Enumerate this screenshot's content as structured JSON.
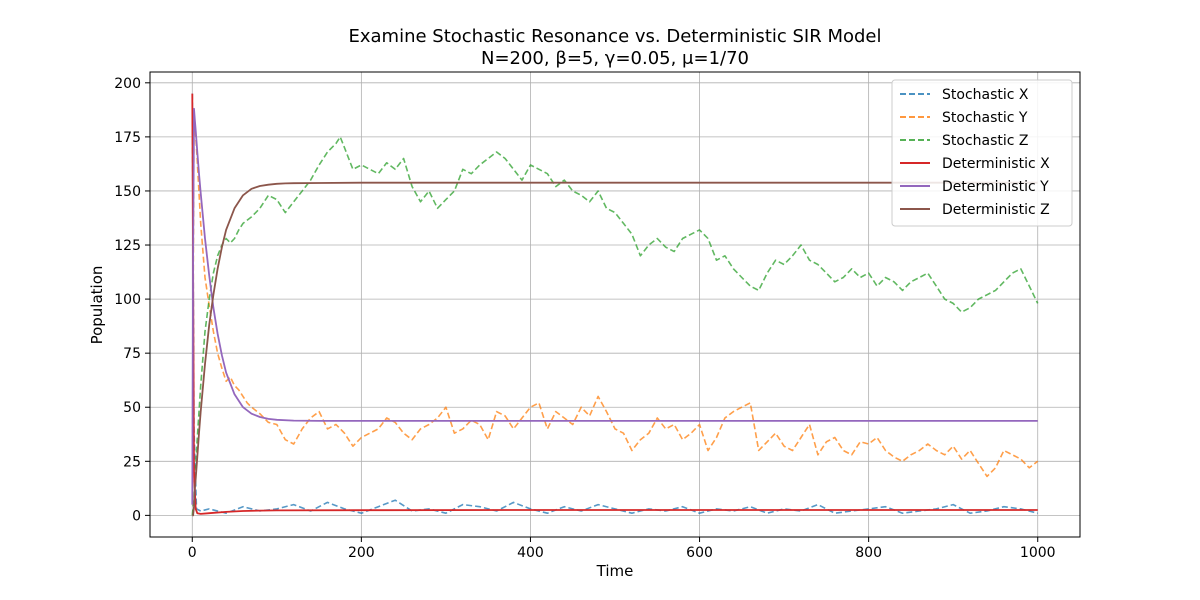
{
  "chart_data": {
    "type": "line",
    "title": "Examine Stochastic Resonance vs. Deterministic SIR Model",
    "subtitle": "N=200, β=5, γ=0.05, μ=1/70",
    "xlabel": "Time",
    "ylabel": "Population",
    "xlim": [
      -50,
      1050
    ],
    "ylim": [
      -10,
      205
    ],
    "xticks": [
      0,
      200,
      400,
      600,
      800,
      1000
    ],
    "yticks": [
      0,
      25,
      50,
      75,
      100,
      125,
      150,
      175,
      200
    ],
    "grid": true,
    "legend_position": "top-right",
    "series": [
      {
        "name": "Stochastic X",
        "color": "#1f77b4",
        "style": "dashed",
        "x": [
          0,
          2,
          5,
          10,
          20,
          40,
          60,
          80,
          100,
          120,
          140,
          160,
          180,
          200,
          220,
          240,
          260,
          280,
          300,
          320,
          340,
          360,
          380,
          400,
          420,
          440,
          460,
          480,
          500,
          520,
          540,
          560,
          580,
          600,
          620,
          640,
          660,
          680,
          700,
          720,
          740,
          760,
          780,
          800,
          820,
          840,
          860,
          880,
          900,
          920,
          940,
          960,
          980,
          1000
        ],
        "y": [
          195,
          40,
          3,
          2,
          3,
          1,
          4,
          2,
          3,
          5,
          2,
          6,
          3,
          1,
          4,
          7,
          2,
          3,
          1,
          5,
          4,
          2,
          6,
          3,
          1,
          4,
          2,
          5,
          3,
          1,
          3,
          2,
          4,
          1,
          3,
          2,
          4,
          1,
          3,
          2,
          5,
          1,
          2,
          3,
          4,
          1,
          2,
          3,
          5,
          1,
          2,
          4,
          3,
          1
        ]
      },
      {
        "name": "Stochastic Y",
        "color": "#ff7f0e",
        "style": "dashed",
        "x": [
          0,
          2,
          5,
          10,
          15,
          20,
          25,
          30,
          35,
          40,
          45,
          50,
          55,
          60,
          65,
          70,
          80,
          90,
          100,
          110,
          120,
          130,
          140,
          150,
          160,
          170,
          180,
          190,
          200,
          210,
          220,
          230,
          240,
          250,
          260,
          270,
          280,
          290,
          300,
          310,
          320,
          330,
          340,
          350,
          360,
          370,
          380,
          390,
          400,
          410,
          420,
          430,
          440,
          450,
          460,
          470,
          480,
          490,
          500,
          510,
          520,
          530,
          540,
          550,
          560,
          570,
          580,
          590,
          600,
          610,
          620,
          630,
          640,
          650,
          660,
          670,
          680,
          690,
          700,
          710,
          720,
          730,
          740,
          750,
          760,
          770,
          780,
          790,
          800,
          810,
          820,
          830,
          840,
          850,
          860,
          870,
          880,
          890,
          900,
          910,
          920,
          930,
          940,
          950,
          960,
          970,
          980,
          990,
          1000
        ],
        "y": [
          5,
          185,
          170,
          135,
          110,
          97,
          85,
          75,
          68,
          62,
          64,
          60,
          58,
          55,
          52,
          50,
          47,
          43,
          42,
          35,
          33,
          40,
          45,
          48,
          40,
          42,
          38,
          32,
          36,
          38,
          40,
          45,
          43,
          38,
          35,
          40,
          42,
          45,
          50,
          38,
          40,
          44,
          42,
          35,
          48,
          46,
          40,
          45,
          50,
          52,
          40,
          48,
          45,
          42,
          50,
          46,
          55,
          48,
          40,
          38,
          30,
          35,
          38,
          45,
          40,
          42,
          35,
          38,
          42,
          30,
          36,
          45,
          48,
          50,
          52,
          30,
          34,
          38,
          32,
          30,
          36,
          42,
          28,
          34,
          36,
          30,
          28,
          34,
          33,
          36,
          30,
          27,
          25,
          28,
          30,
          33,
          30,
          28,
          32,
          26,
          30,
          24,
          18,
          22,
          30,
          28,
          26,
          22,
          25
        ]
      },
      {
        "name": "Stochastic Z",
        "color": "#2ca02c",
        "style": "dashed",
        "x": [
          0,
          2,
          5,
          10,
          15,
          20,
          25,
          30,
          35,
          40,
          45,
          50,
          55,
          60,
          70,
          80,
          90,
          100,
          110,
          120,
          130,
          140,
          150,
          160,
          170,
          175,
          180,
          190,
          200,
          210,
          220,
          230,
          240,
          250,
          260,
          270,
          280,
          290,
          300,
          310,
          320,
          330,
          340,
          350,
          360,
          370,
          380,
          390,
          400,
          410,
          420,
          430,
          440,
          450,
          460,
          470,
          480,
          490,
          500,
          510,
          520,
          530,
          540,
          550,
          560,
          570,
          580,
          590,
          600,
          610,
          620,
          630,
          640,
          650,
          660,
          670,
          680,
          690,
          700,
          710,
          720,
          730,
          740,
          750,
          760,
          770,
          780,
          790,
          800,
          810,
          820,
          830,
          840,
          850,
          860,
          870,
          880,
          890,
          900,
          910,
          920,
          930,
          940,
          950,
          960,
          970,
          980,
          990,
          1000
        ],
        "y": [
          0,
          8,
          30,
          60,
          85,
          100,
          112,
          120,
          125,
          128,
          126,
          128,
          132,
          135,
          138,
          142,
          148,
          146,
          140,
          145,
          150,
          155,
          162,
          168,
          172,
          175,
          170,
          160,
          162,
          160,
          158,
          163,
          160,
          165,
          152,
          145,
          150,
          142,
          146,
          150,
          160,
          158,
          162,
          165,
          168,
          165,
          160,
          155,
          162,
          160,
          158,
          152,
          155,
          150,
          148,
          145,
          150,
          142,
          140,
          135,
          130,
          120,
          125,
          128,
          124,
          122,
          128,
          130,
          132,
          128,
          118,
          120,
          114,
          110,
          106,
          104,
          112,
          118,
          116,
          120,
          125,
          118,
          116,
          112,
          108,
          110,
          114,
          110,
          112,
          106,
          110,
          108,
          104,
          108,
          110,
          112,
          106,
          100,
          98,
          94,
          96,
          100,
          102,
          104,
          108,
          112,
          114,
          106,
          98
        ]
      },
      {
        "name": "Deterministic X",
        "color": "#d62728",
        "style": "solid",
        "x": [
          0,
          2,
          4,
          6,
          10,
          20,
          40,
          60,
          80,
          100,
          200,
          400,
          600,
          800,
          1000
        ],
        "y": [
          195,
          20,
          3,
          1,
          0.7,
          1,
          1.6,
          2,
          2.2,
          2.3,
          2.4,
          2.5,
          2.5,
          2.5,
          2.5
        ]
      },
      {
        "name": "Deterministic Y",
        "color": "#9467bd",
        "style": "solid",
        "x": [
          0,
          1,
          2,
          3,
          4,
          6,
          8,
          10,
          15,
          20,
          25,
          30,
          35,
          40,
          50,
          60,
          70,
          80,
          90,
          100,
          120,
          150,
          200,
          300,
          400,
          600,
          800,
          1000
        ],
        "y": [
          5,
          120,
          188,
          183,
          178,
          168,
          158,
          149,
          128,
          111,
          96,
          84,
          74,
          66,
          56,
          50,
          47,
          45.5,
          44.6,
          44.2,
          43.8,
          43.7,
          43.7,
          43.7,
          43.7,
          43.7,
          43.7,
          43.7
        ]
      },
      {
        "name": "Deterministic Z",
        "color": "#8c564b",
        "style": "solid",
        "x": [
          0,
          1,
          2,
          3,
          4,
          6,
          8,
          10,
          15,
          20,
          25,
          30,
          35,
          40,
          50,
          60,
          70,
          80,
          90,
          100,
          110,
          120,
          150,
          200,
          300,
          400,
          600,
          800,
          1000
        ],
        "y": [
          0,
          0,
          4,
          12,
          17,
          27,
          38,
          48,
          70,
          88,
          102,
          114,
          124,
          132,
          142,
          148,
          151,
          152.3,
          152.9,
          153.3,
          153.5,
          153.6,
          153.7,
          153.8,
          153.8,
          153.8,
          153.8,
          153.8,
          153.8
        ]
      }
    ]
  }
}
